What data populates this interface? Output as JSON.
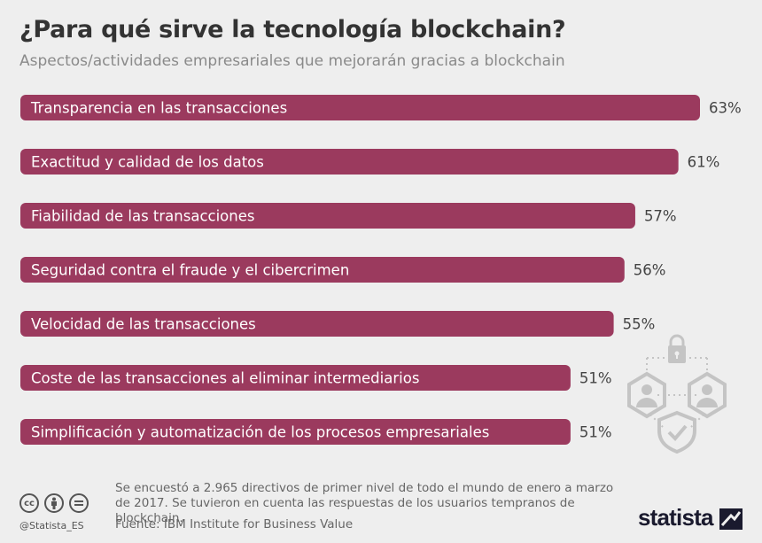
{
  "header": {
    "title": "¿Para qué sirve la tecnología blockchain?",
    "subtitle": "Aspectos/actividades empresariales que mejorarán gracias a blockchain"
  },
  "chart_data": {
    "type": "bar",
    "orientation": "horizontal",
    "categories": [
      "Transparencia en las transacciones",
      "Exactitud y calidad de los datos",
      "Fiabilidad de las transacciones",
      "Seguridad contra el fraude y el cibercrimen",
      "Velocidad de las transacciones",
      "Coste de las transacciones al eliminar intermediarios",
      "Simplificación y automatización de los procesos empresariales"
    ],
    "values": [
      63,
      61,
      57,
      56,
      55,
      51,
      51
    ],
    "value_labels": [
      "63%",
      "61%",
      "57%",
      "56%",
      "55%",
      "51%",
      "51%"
    ],
    "unit": "%",
    "bar_color": "#9b3a5e",
    "grid": false
  },
  "footer": {
    "note": "Se encuestó a 2.965 directivos de primer nivel de todo el mundo de enero a marzo de 2017. Se tuvieron en cuenta las respuestas de los usuarios tempranos de blockchain.",
    "source": "Fuente: IBM Institute for Business Value",
    "handle": "@Statista_ES",
    "brand": "statista",
    "license_icons": [
      "cc",
      "by",
      "nd"
    ]
  },
  "colors": {
    "background": "#eeeeee",
    "bar": "#9b3a5e",
    "title": "#333333",
    "subtitle": "#8a8a8a",
    "illustration": "#c4c4c4"
  },
  "icons": [
    "lock-icon",
    "user-icon",
    "user-icon",
    "shield-check-icon"
  ]
}
